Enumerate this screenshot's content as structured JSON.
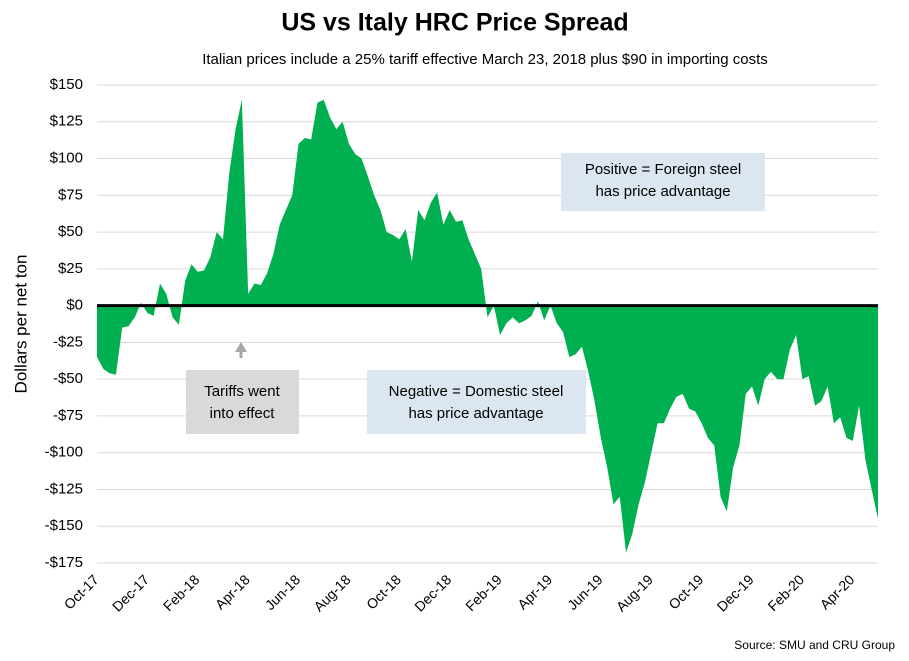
{
  "chart_data": {
    "type": "area",
    "title": "US vs Italy HRC Price Spread",
    "subtitle": "Italian prices include a 25% tariff effective March 23, 2018 plus $90 in importing costs",
    "y_label": "Dollars per net ton",
    "source": "Source: SMU and CRU Group",
    "color": "#00b050",
    "grid": true,
    "ylim": [
      -175,
      150
    ],
    "yticks": [
      {
        "value": -175,
        "label": "-$175"
      },
      {
        "value": -150,
        "label": "-$150"
      },
      {
        "value": -125,
        "label": "-$125"
      },
      {
        "value": -100,
        "label": "-$100"
      },
      {
        "value": -75,
        "label": "-$75"
      },
      {
        "value": -50,
        "label": "-$50"
      },
      {
        "value": -25,
        "label": "-$25"
      },
      {
        "value": 0,
        "label": "$0"
      },
      {
        "value": 25,
        "label": "$25"
      },
      {
        "value": 50,
        "label": "$50"
      },
      {
        "value": 75,
        "label": "$75"
      },
      {
        "value": 100,
        "label": "$100"
      },
      {
        "value": 125,
        "label": "$125"
      },
      {
        "value": 150,
        "label": "$150"
      }
    ],
    "categories": [
      "Oct-17",
      null,
      null,
      null,
      null,
      null,
      null,
      null,
      "Dec-17",
      null,
      null,
      null,
      null,
      null,
      null,
      null,
      "Feb-18",
      null,
      null,
      null,
      null,
      null,
      null,
      null,
      "Apr-18",
      null,
      null,
      null,
      null,
      null,
      null,
      null,
      "Jun-18",
      null,
      null,
      null,
      null,
      null,
      null,
      null,
      "Aug-18",
      null,
      null,
      null,
      null,
      null,
      null,
      null,
      "Oct-18",
      null,
      null,
      null,
      null,
      null,
      null,
      null,
      "Dec-18",
      null,
      null,
      null,
      null,
      null,
      null,
      null,
      "Feb-19",
      null,
      null,
      null,
      null,
      null,
      null,
      null,
      "Apr-19",
      null,
      null,
      null,
      null,
      null,
      null,
      null,
      "Jun-19",
      null,
      null,
      null,
      null,
      null,
      null,
      null,
      "Aug-19",
      null,
      null,
      null,
      null,
      null,
      null,
      null,
      "Oct-19",
      null,
      null,
      null,
      null,
      null,
      null,
      null,
      "Dec-19",
      null,
      null,
      null,
      null,
      null,
      null,
      null,
      "Feb-20",
      null,
      null,
      null,
      null,
      null,
      null,
      null,
      "Apr-20",
      null,
      null,
      null,
      null
    ],
    "values": [
      -35,
      -43,
      -46,
      -47,
      -15,
      -14,
      -8,
      2,
      -5,
      -7,
      15,
      8,
      -8,
      -13,
      17,
      28,
      23,
      24,
      33,
      50,
      45,
      90,
      120,
      140,
      8,
      15,
      14,
      22,
      35,
      55,
      65,
      75,
      110,
      114,
      113,
      138,
      140,
      128,
      120,
      125,
      110,
      103,
      100,
      88,
      75,
      65,
      50,
      48,
      45,
      52,
      30,
      65,
      58,
      70,
      77,
      55,
      65,
      57,
      58,
      45,
      35,
      25,
      -8,
      0,
      -20,
      -12,
      -8,
      -12,
      -10,
      -7,
      3,
      -10,
      0,
      -12,
      -18,
      -35,
      -33,
      -28,
      -45,
      -65,
      -90,
      -110,
      -135,
      -130,
      -168,
      -155,
      -135,
      -120,
      -100,
      -80,
      -80,
      -70,
      -62,
      -60,
      -70,
      -72,
      -80,
      -90,
      -95,
      -130,
      -140,
      -110,
      -95,
      -60,
      -55,
      -68,
      -50,
      -45,
      -50,
      -50,
      -30,
      -20,
      -50,
      -48,
      -68,
      -65,
      -55,
      -80,
      -76,
      -90,
      -92,
      -68,
      -105,
      -125,
      -145
    ],
    "annotations": [
      {
        "text": [
          "Positive = Foreign steel",
          "has price advantage"
        ]
      },
      {
        "text": [
          "Negative = Domestic steel",
          "has price advantage"
        ]
      },
      {
        "text": [
          "Tariffs went",
          "into effect"
        ]
      }
    ]
  }
}
